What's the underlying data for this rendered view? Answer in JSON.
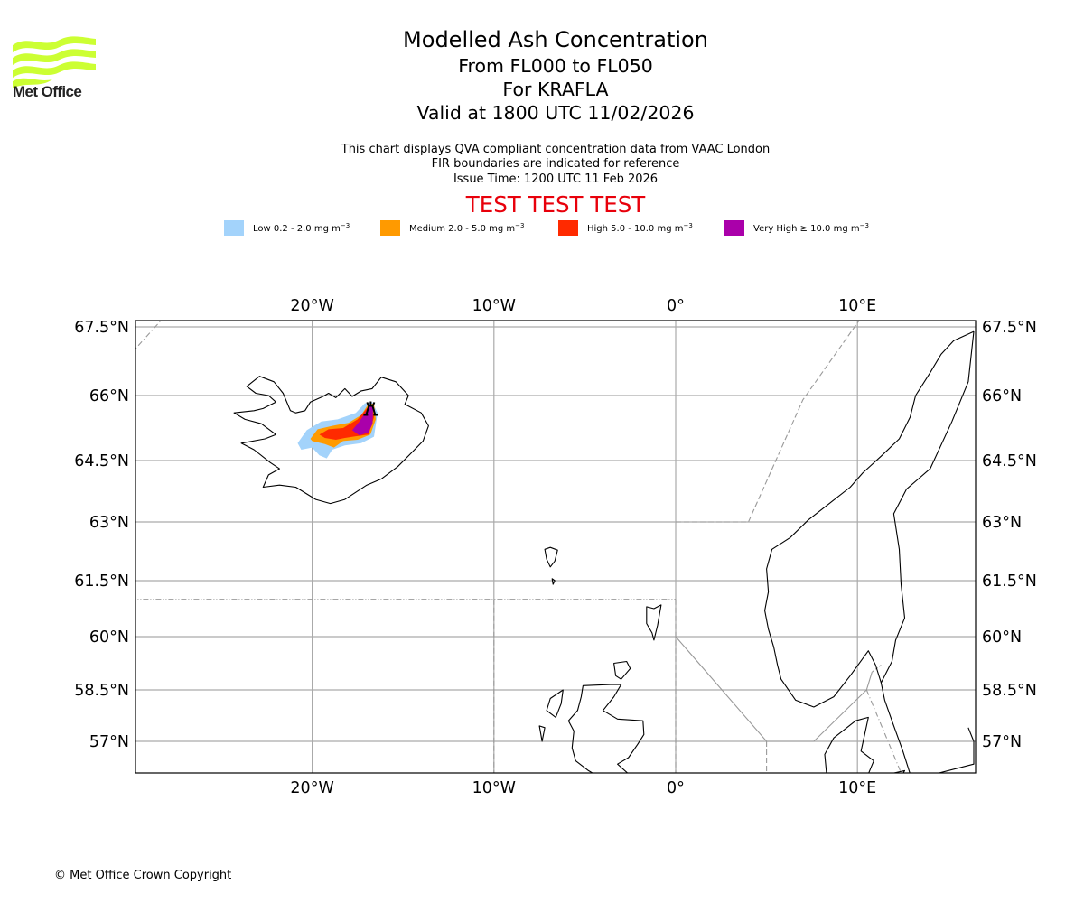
{
  "logo": {
    "text": "Met Office",
    "icon": "met-office-waves-logo",
    "color": "#ccff33"
  },
  "header": {
    "title": "Modelled Ash Concentration",
    "levels": "From FL000 to FL050",
    "volcano": "For KRAFLA",
    "valid": "Valid at 1800 UTC 11/02/2026"
  },
  "notes": {
    "line1": "This chart displays QVA compliant concentration data from VAAC London",
    "line2": "FIR boundaries are indicated for reference",
    "line3": "Issue Time: 1200 UTC 11 Feb 2026"
  },
  "test_banner": {
    "text": "TEST TEST TEST",
    "color": "#e8000b"
  },
  "legend": [
    {
      "name": "Low",
      "label": "Low 0.2 - 2.0 mg m",
      "unit_exp": "−3",
      "color": "#a3d3fb"
    },
    {
      "name": "Medium",
      "label": "Medium 2.0 - 5.0 mg m",
      "unit_exp": "−3",
      "color": "#ff9a00"
    },
    {
      "name": "High",
      "label": "High 5.0 - 10.0 mg m",
      "unit_exp": "−3",
      "color": "#ff2a00"
    },
    {
      "name": "Very High",
      "label": "Very High  ≥  10.0 mg m",
      "unit_exp": "−3",
      "color": "#aa00aa"
    }
  ],
  "map": {
    "lon_ticks": [
      {
        "lon": -20,
        "label": "20°W"
      },
      {
        "lon": -10,
        "label": "10°W"
      },
      {
        "lon": 0,
        "label": "0°"
      },
      {
        "lon": 10,
        "label": "10°E"
      }
    ],
    "lat_ticks": [
      {
        "lat": 67.5,
        "label": "67.5°N"
      },
      {
        "lat": 66,
        "label": "66°N"
      },
      {
        "lat": 64.5,
        "label": "64.5°N"
      },
      {
        "lat": 63,
        "label": "63°N"
      },
      {
        "lat": 61.5,
        "label": "61.5°N"
      },
      {
        "lat": 60,
        "label": "60°N"
      },
      {
        "lat": 58.5,
        "label": "58.5°N"
      },
      {
        "lat": 57,
        "label": "57°N"
      }
    ],
    "extent": {
      "lon_min": -29.8,
      "lon_max": 16.4,
      "lat_min": 55.95,
      "lat_max": 67.65
    },
    "volcano": {
      "name": "KRAFLA",
      "lat": 65.72,
      "lon": -16.78,
      "icon": "volcano-icon"
    },
    "gridline_color": "#aaaaaa",
    "fir_color": "#999999"
  },
  "copyright": "© Met Office Crown Copyright"
}
